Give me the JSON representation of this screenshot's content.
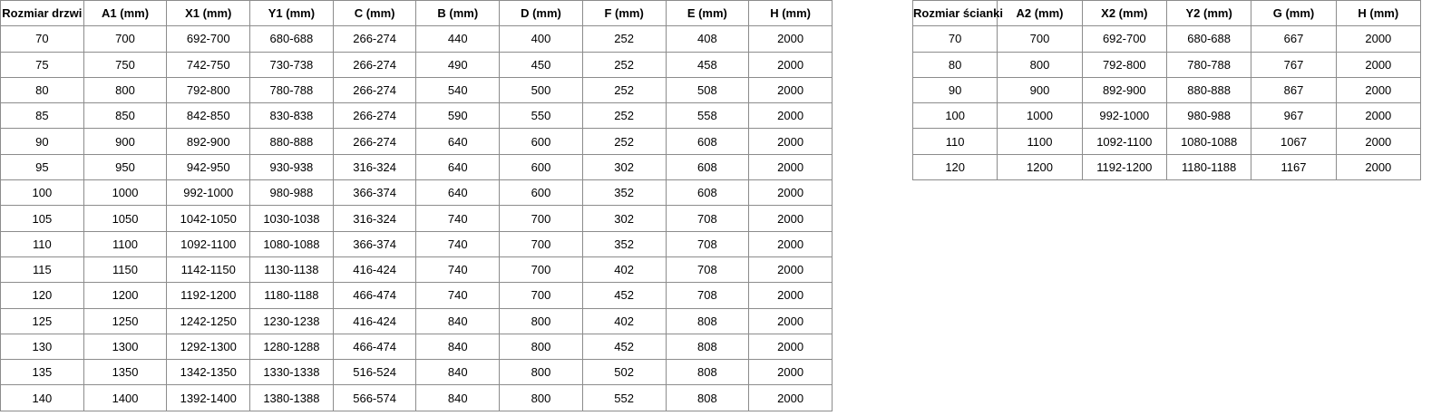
{
  "doors_table": {
    "headers": [
      "Rozmiar drzwi",
      "A1 (mm)",
      "X1 (mm)",
      "Y1 (mm)",
      "C (mm)",
      "B (mm)",
      "D (mm)",
      "F (mm)",
      "E (mm)",
      "H (mm)"
    ],
    "rows": [
      [
        "70",
        "700",
        "692-700",
        "680-688",
        "266-274",
        "440",
        "400",
        "252",
        "408",
        "2000"
      ],
      [
        "75",
        "750",
        "742-750",
        "730-738",
        "266-274",
        "490",
        "450",
        "252",
        "458",
        "2000"
      ],
      [
        "80",
        "800",
        "792-800",
        "780-788",
        "266-274",
        "540",
        "500",
        "252",
        "508",
        "2000"
      ],
      [
        "85",
        "850",
        "842-850",
        "830-838",
        "266-274",
        "590",
        "550",
        "252",
        "558",
        "2000"
      ],
      [
        "90",
        "900",
        "892-900",
        "880-888",
        "266-274",
        "640",
        "600",
        "252",
        "608",
        "2000"
      ],
      [
        "95",
        "950",
        "942-950",
        "930-938",
        "316-324",
        "640",
        "600",
        "302",
        "608",
        "2000"
      ],
      [
        "100",
        "1000",
        "992-1000",
        "980-988",
        "366-374",
        "640",
        "600",
        "352",
        "608",
        "2000"
      ],
      [
        "105",
        "1050",
        "1042-1050",
        "1030-1038",
        "316-324",
        "740",
        "700",
        "302",
        "708",
        "2000"
      ],
      [
        "110",
        "1100",
        "1092-1100",
        "1080-1088",
        "366-374",
        "740",
        "700",
        "352",
        "708",
        "2000"
      ],
      [
        "115",
        "1150",
        "1142-1150",
        "1130-1138",
        "416-424",
        "740",
        "700",
        "402",
        "708",
        "2000"
      ],
      [
        "120",
        "1200",
        "1192-1200",
        "1180-1188",
        "466-474",
        "740",
        "700",
        "452",
        "708",
        "2000"
      ],
      [
        "125",
        "1250",
        "1242-1250",
        "1230-1238",
        "416-424",
        "840",
        "800",
        "402",
        "808",
        "2000"
      ],
      [
        "130",
        "1300",
        "1292-1300",
        "1280-1288",
        "466-474",
        "840",
        "800",
        "452",
        "808",
        "2000"
      ],
      [
        "135",
        "1350",
        "1342-1350",
        "1330-1338",
        "516-524",
        "840",
        "800",
        "502",
        "808",
        "2000"
      ],
      [
        "140",
        "1400",
        "1392-1400",
        "1380-1388",
        "566-574",
        "840",
        "800",
        "552",
        "808",
        "2000"
      ]
    ]
  },
  "walls_table": {
    "headers": [
      "Rozmiar ścianki",
      "A2 (mm)",
      "X2 (mm)",
      "Y2 (mm)",
      "G (mm)",
      "H (mm)"
    ],
    "rows": [
      [
        "70",
        "700",
        "692-700",
        "680-688",
        "667",
        "2000"
      ],
      [
        "80",
        "800",
        "792-800",
        "780-788",
        "767",
        "2000"
      ],
      [
        "90",
        "900",
        "892-900",
        "880-888",
        "867",
        "2000"
      ],
      [
        "100",
        "1000",
        "992-1000",
        "980-988",
        "967",
        "2000"
      ],
      [
        "110",
        "1100",
        "1092-1100",
        "1080-1088",
        "1067",
        "2000"
      ],
      [
        "120",
        "1200",
        "1192-1200",
        "1180-1188",
        "1167",
        "2000"
      ]
    ]
  }
}
